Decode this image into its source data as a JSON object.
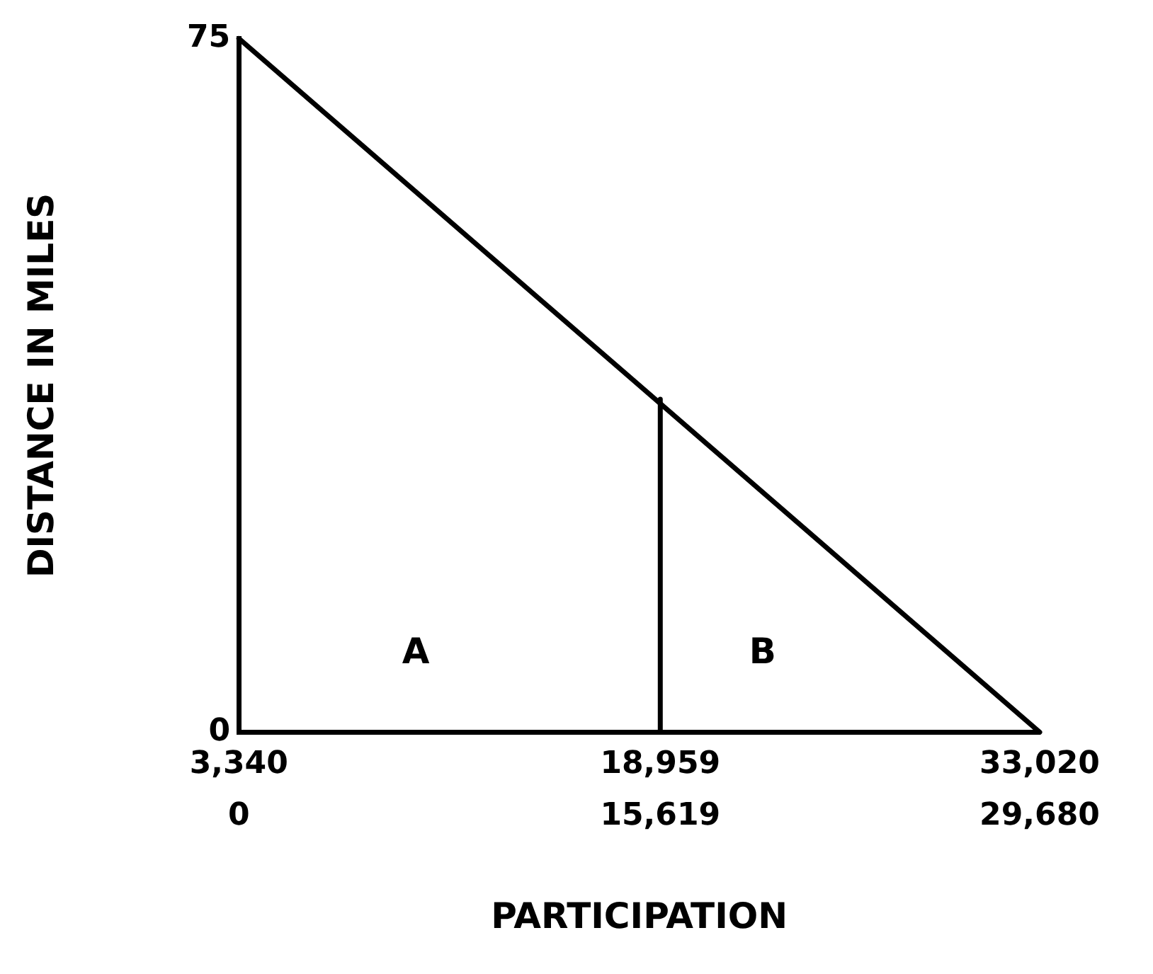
{
  "chart_data": {
    "type": "line",
    "xlabel": "PARTICIPATION",
    "ylabel": "DISTANCE IN MILES",
    "series": [
      {
        "color": "#000000",
        "x": [
          3340,
          33020
        ],
        "values": [
          75,
          0
        ]
      },
      {
        "color": "#000000",
        "x": [
          18959,
          18959
        ],
        "values": [
          0,
          36
        ]
      }
    ],
    "xlim": [
      3340,
      33020
    ],
    "xticks": [
      {
        "value": 3340,
        "label": "3,340"
      },
      {
        "value": 18959,
        "label": "18,959"
      },
      {
        "value": 33020,
        "label": "33,020"
      }
    ],
    "x2lim": [
      0,
      29680
    ],
    "x2ticks": [
      0,
      {
        "value": 15619,
        "label": "15,619"
      },
      {
        "value": 29680,
        "label": "29,680"
      }
    ],
    "ylim": [
      0,
      75
    ],
    "yticks": [
      0,
      75
    ],
    "annotations": [
      "A",
      "B"
    ],
    "grid": false,
    "legend": false,
    "marker": "none",
    "line_style": "solid"
  }
}
